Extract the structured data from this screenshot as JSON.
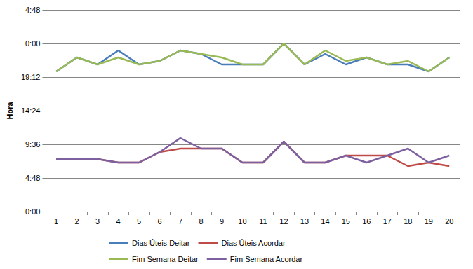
{
  "chart_data": {
    "type": "line",
    "y_label": "Hora",
    "categories": [
      1,
      2,
      3,
      4,
      5,
      6,
      7,
      8,
      9,
      10,
      11,
      12,
      13,
      14,
      15,
      16,
      17,
      18,
      19,
      20
    ],
    "ylim": [
      0,
      28.8
    ],
    "yticks": [
      {
        "value": 0,
        "label": "0:00"
      },
      {
        "value": 4.8,
        "label": "4:48"
      },
      {
        "value": 9.6,
        "label": "9:36"
      },
      {
        "value": 14.4,
        "label": "14:24"
      },
      {
        "value": 19.2,
        "label": "19:12"
      },
      {
        "value": 24,
        "label": "0:00"
      },
      {
        "value": 28.8,
        "label": "4:48"
      }
    ],
    "grid": true,
    "legend": "bottom",
    "series": [
      {
        "name": "Dias Úteis Deitar",
        "color": "#4a7ebb",
        "values": [
          20,
          22,
          21,
          23,
          21,
          21.5,
          23,
          22.5,
          21,
          21,
          21,
          24,
          21,
          22.5,
          21,
          22,
          21,
          21,
          20,
          22
        ]
      },
      {
        "name": "Dias Úteis Acordar",
        "color": "#be4b48",
        "values": [
          7.5,
          7.5,
          7.5,
          7,
          7,
          8.5,
          9,
          9,
          9,
          7,
          7,
          10,
          7,
          7,
          8,
          8,
          8,
          6.5,
          7,
          6.5
        ]
      },
      {
        "name": "Fim Semana Deitar",
        "color": "#98b954",
        "values": [
          20,
          22,
          21,
          22,
          21,
          21.5,
          23,
          22.5,
          22,
          21,
          21,
          24,
          21,
          23,
          21.5,
          22,
          21,
          21.5,
          20,
          22
        ]
      },
      {
        "name": "Fim Semana Acordar",
        "color": "#7d60a0",
        "values": [
          7.5,
          7.5,
          7.5,
          7,
          7,
          8.5,
          10.5,
          9,
          9,
          7,
          7,
          10,
          7,
          7,
          8,
          7,
          8,
          9,
          7,
          8
        ]
      }
    ]
  }
}
